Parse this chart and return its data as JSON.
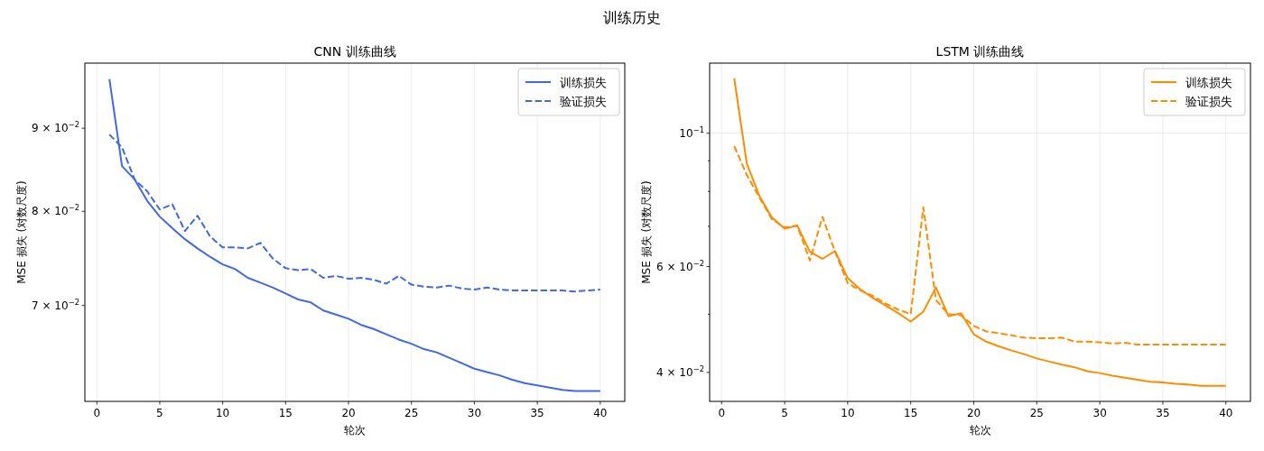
{
  "chart_data": [
    {
      "type": "line",
      "title": "CNN 训练曲线",
      "xlabel": "轮次",
      "ylabel": "MSE 损失 (对数尺度)",
      "annotations": [
        "训练历史"
      ],
      "log": "y",
      "grid": true,
      "legend": "top right",
      "xlim": [
        -0.95,
        41.95
      ],
      "xticks": [
        0,
        5,
        10,
        15,
        20,
        25,
        30,
        35,
        40
      ],
      "ylim": [
        0.0611,
        0.0987
      ],
      "yticks": [
        {
          "value": 0.07,
          "label": "7 × 10$^{−2}$"
        },
        {
          "value": 0.08,
          "label": "8 × 10$^{−2}$"
        },
        {
          "value": 0.09,
          "label": "9 × 10$^{−2}$"
        }
      ],
      "x": [
        1,
        2,
        3,
        4,
        5,
        6,
        7,
        8,
        9,
        10,
        11,
        12,
        13,
        14,
        15,
        16,
        17,
        18,
        19,
        20,
        21,
        22,
        23,
        24,
        25,
        26,
        27,
        28,
        29,
        30,
        31,
        32,
        33,
        34,
        35,
        36,
        37,
        38,
        39,
        40
      ],
      "series": [
        {
          "name": "训练损失",
          "color": "#4169e1",
          "line_style": "solid",
          "values": [
            0.0965,
            0.0853,
            0.0837,
            0.0812,
            0.0794,
            0.0781,
            0.0769,
            0.0759,
            0.075,
            0.0742,
            0.0737,
            0.0728,
            0.0723,
            0.0718,
            0.0712,
            0.0706,
            0.0703,
            0.0695,
            0.0691,
            0.0687,
            0.0681,
            0.0677,
            0.0672,
            0.0667,
            0.0663,
            0.0658,
            0.0655,
            0.065,
            0.0645,
            0.064,
            0.0637,
            0.0634,
            0.063,
            0.0627,
            0.0625,
            0.0623,
            0.0621,
            0.062,
            0.062,
            0.062
          ]
        },
        {
          "name": "验证损失",
          "color": "#4169e1",
          "line_style": "dashed",
          "values": [
            0.0892,
            0.0876,
            0.0837,
            0.0823,
            0.0802,
            0.0808,
            0.0778,
            0.0795,
            0.0772,
            0.076,
            0.076,
            0.0759,
            0.0765,
            0.0748,
            0.0738,
            0.0736,
            0.0737,
            0.0728,
            0.073,
            0.0727,
            0.0728,
            0.0726,
            0.0722,
            0.073,
            0.0721,
            0.0719,
            0.0718,
            0.072,
            0.0717,
            0.0716,
            0.0718,
            0.0716,
            0.0715,
            0.0715,
            0.0715,
            0.0715,
            0.0715,
            0.0714,
            0.0715,
            0.0716
          ]
        }
      ]
    },
    {
      "type": "line",
      "title": "LSTM 训练曲线",
      "xlabel": "轮次",
      "ylabel": "MSE 损失 (对数尺度)",
      "log": "y",
      "grid": true,
      "legend": "top right",
      "xlim": [
        -0.95,
        41.95
      ],
      "xticks": [
        0,
        5,
        10,
        15,
        20,
        25,
        30,
        35,
        40
      ],
      "ylim": [
        0.0358,
        0.1308
      ],
      "yticks": [
        {
          "value": 0.04,
          "label": "4 × 10$^{−2}$"
        },
        {
          "value": 0.05,
          "label": null
        },
        {
          "value": 0.06,
          "label": "6 × 10$^{−2}$"
        },
        {
          "value": 0.07,
          "label": null
        },
        {
          "value": 0.08,
          "label": null
        },
        {
          "value": 0.09,
          "label": null
        },
        {
          "value": 0.1,
          "label": "10$^{−1}$"
        }
      ],
      "x": [
        1,
        2,
        3,
        4,
        5,
        6,
        7,
        8,
        9,
        10,
        11,
        12,
        13,
        14,
        15,
        16,
        17,
        18,
        19,
        20,
        21,
        22,
        23,
        24,
        25,
        26,
        27,
        28,
        29,
        30,
        31,
        32,
        33,
        34,
        35,
        36,
        37,
        38,
        39,
        40
      ],
      "series": [
        {
          "name": "训练损失",
          "color": "#ff8c00",
          "line_style": "solid",
          "values": [
            0.1234,
            0.089,
            0.0786,
            0.0724,
            0.0694,
            0.0702,
            0.0635,
            0.0618,
            0.0637,
            0.0574,
            0.055,
            0.0532,
            0.0517,
            0.0502,
            0.0486,
            0.0505,
            0.0554,
            0.0496,
            0.0502,
            0.0463,
            0.045,
            0.0442,
            0.0435,
            0.0429,
            0.0422,
            0.0417,
            0.0412,
            0.0408,
            0.0402,
            0.0399,
            0.0395,
            0.0392,
            0.0389,
            0.0386,
            0.0385,
            0.0383,
            0.0382,
            0.038,
            0.038,
            0.038
          ]
        },
        {
          "name": "验证损失",
          "color": "#ff8c00",
          "line_style": "dashed",
          "values": [
            0.0952,
            0.0852,
            0.0782,
            0.0719,
            0.0697,
            0.0702,
            0.0614,
            0.0726,
            0.0635,
            0.0563,
            0.0548,
            0.0536,
            0.0521,
            0.0509,
            0.05,
            0.0753,
            0.0528,
            0.05,
            0.0498,
            0.0478,
            0.0468,
            0.0465,
            0.0461,
            0.0457,
            0.0456,
            0.0456,
            0.0457,
            0.045,
            0.045,
            0.0449,
            0.0447,
            0.0448,
            0.0445,
            0.0445,
            0.0445,
            0.0445,
            0.0445,
            0.0445,
            0.0445,
            0.0445
          ]
        }
      ]
    }
  ]
}
